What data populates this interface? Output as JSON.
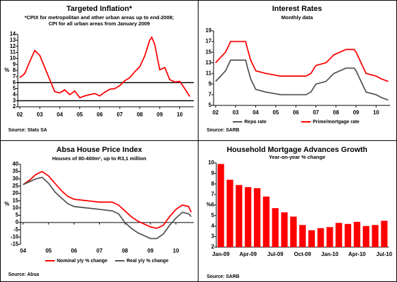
{
  "chart_data": [
    {
      "type": "line",
      "title": "Targeted Inflation*",
      "subtitle": [
        "*CPIX for metropolitan and other urban areas up to end-2008;",
        "CPI for all urban areas from January 2009"
      ],
      "ylabel": "%",
      "source": "Source: Stats SA",
      "x": [
        2002.0,
        2002.25,
        2002.5,
        2002.75,
        2003.0,
        2003.25,
        2003.5,
        2003.75,
        2004.0,
        2004.25,
        2004.5,
        2004.75,
        2005.0,
        2005.25,
        2005.5,
        2005.75,
        2006.0,
        2006.25,
        2006.5,
        2006.75,
        2007.0,
        2007.25,
        2007.5,
        2007.75,
        2008.0,
        2008.25,
        2008.5,
        2008.6,
        2008.75,
        2009.0,
        2009.25,
        2009.5,
        2009.75,
        2010.0,
        2010.25,
        2010.5
      ],
      "series": [
        {
          "color": "#ff0000",
          "values": [
            6.8,
            7.5,
            9.5,
            11.3,
            10.5,
            8.5,
            6.5,
            4.5,
            4.3,
            4.8,
            4.0,
            4.6,
            3.5,
            3.8,
            4.0,
            4.2,
            3.8,
            4.4,
            4.9,
            5.0,
            5.5,
            6.3,
            6.8,
            7.8,
            8.6,
            10.4,
            13.0,
            13.5,
            12.3,
            8.1,
            8.5,
            6.5,
            6.1,
            6.2,
            5.0,
            3.7
          ]
        }
      ],
      "hlines": [
        3,
        6
      ],
      "xlim": [
        2001.9,
        2010.7
      ],
      "xticks": [
        {
          "value": 2002,
          "label": "02"
        },
        {
          "value": 2003,
          "label": "03"
        },
        {
          "value": 2004,
          "label": "04"
        },
        {
          "value": 2005,
          "label": "05"
        },
        {
          "value": 2006,
          "label": "06"
        },
        {
          "value": 2007,
          "label": "07"
        },
        {
          "value": 2008,
          "label": "08"
        },
        {
          "value": 2009,
          "label": "09"
        },
        {
          "value": 2010,
          "label": "10"
        }
      ],
      "ylim": [
        2,
        14
      ],
      "yticks": [
        2,
        3,
        4,
        5,
        6,
        7,
        8,
        9,
        10,
        11,
        12,
        13,
        14
      ]
    },
    {
      "type": "line",
      "title": "Interest Rates",
      "subtitle": [
        "Monthly data"
      ],
      "source": "Source: SARB",
      "x": [
        2002.0,
        2002.25,
        2002.5,
        2002.75,
        2003.0,
        2003.25,
        2003.5,
        2003.6,
        2003.75,
        2004.0,
        2004.5,
        2005.25,
        2006.5,
        2006.75,
        2007.0,
        2007.5,
        2007.9,
        2008.5,
        2008.9,
        2009.0,
        2009.25,
        2009.5,
        2010.0,
        2010.25,
        2010.6
      ],
      "series": [
        {
          "name": "Repo rate",
          "color": "#555555",
          "values": [
            9.5,
            10.5,
            11.5,
            13.5,
            13.5,
            13.5,
            13.5,
            12,
            10,
            8,
            7.5,
            7,
            7,
            7.5,
            9,
            9.5,
            11,
            12,
            12,
            11.5,
            9.5,
            7.5,
            7,
            6.5,
            6
          ]
        },
        {
          "name": "Prime/mortgage rate",
          "color": "#ff0000",
          "values": [
            13,
            14,
            15,
            17,
            17,
            17,
            17,
            15.5,
            13.5,
            11.5,
            11,
            10.5,
            10.5,
            11,
            12.5,
            13,
            14.5,
            15.5,
            15.5,
            15,
            13,
            11,
            10.5,
            10,
            9.5
          ]
        }
      ],
      "xlim": [
        2001.9,
        2010.7
      ],
      "xticks": [
        {
          "value": 2002,
          "label": "02"
        },
        {
          "value": 2003,
          "label": "03"
        },
        {
          "value": 2004,
          "label": "04"
        },
        {
          "value": 2005,
          "label": "05"
        },
        {
          "value": 2006,
          "label": "06"
        },
        {
          "value": 2007,
          "label": "07"
        },
        {
          "value": 2008,
          "label": "08"
        },
        {
          "value": 2009,
          "label": "09"
        },
        {
          "value": 2010,
          "label": "10"
        }
      ],
      "ylim": [
        5,
        19
      ],
      "yticks": [
        5,
        7,
        9,
        11,
        13,
        15,
        17,
        19
      ]
    },
    {
      "type": "line",
      "title": "Absa House Price Index",
      "subtitle": [
        "Houses of 80-400m², up to R3,1 million"
      ],
      "ylabel": "%",
      "source": "Source: Absa",
      "x": [
        2004.0,
        2004.25,
        2004.5,
        2004.75,
        2005.0,
        2005.25,
        2005.5,
        2005.75,
        2006.0,
        2006.5,
        2007.0,
        2007.5,
        2007.75,
        2008.0,
        2008.25,
        2008.5,
        2008.75,
        2009.0,
        2009.25,
        2009.5,
        2009.75,
        2010.0,
        2010.25,
        2010.5,
        2010.6
      ],
      "series": [
        {
          "name": "Nominal y/y % change",
          "color": "#ff0000",
          "values": [
            26,
            29,
            33,
            35,
            32,
            27,
            22,
            18,
            16,
            15,
            14,
            14,
            12,
            8,
            4,
            1,
            -1,
            -3,
            -4,
            -2,
            4,
            9,
            12,
            11,
            7
          ]
        },
        {
          "name": "Real y/y % change",
          "color": "#555555",
          "values": [
            26,
            28,
            30,
            31,
            27,
            21,
            17,
            13,
            11,
            10,
            9,
            8,
            6,
            0,
            -4,
            -7,
            -9,
            -11,
            -11,
            -8,
            -2,
            3,
            7,
            6,
            4
          ]
        }
      ],
      "xlim": [
        2003.9,
        2010.7
      ],
      "xticks": [
        {
          "value": 2004,
          "label": "04"
        },
        {
          "value": 2005,
          "label": "05"
        },
        {
          "value": 2006,
          "label": "06"
        },
        {
          "value": 2007,
          "label": "07"
        },
        {
          "value": 2008,
          "label": "08"
        },
        {
          "value": 2009,
          "label": "09"
        },
        {
          "value": 2010,
          "label": "10"
        }
      ],
      "ylim": [
        -15,
        40
      ],
      "yticks": [
        -15,
        -10,
        -5,
        0,
        5,
        10,
        15,
        20,
        25,
        30,
        35,
        40
      ]
    },
    {
      "type": "bar",
      "title": "Household Mortgage Advances Growth",
      "subtitle": [
        "Year-on-year % change"
      ],
      "ylabel": "%",
      "source": "Source: SARB",
      "categories": [
        "Jan-09",
        null,
        null,
        "Apr-09",
        null,
        null,
        "Jul-09",
        null,
        null,
        "Oct-09",
        null,
        null,
        "Jan-10",
        null,
        null,
        "Apr-10",
        null,
        null,
        "Jul-10"
      ],
      "values": [
        9.9,
        8.4,
        7.9,
        7.7,
        7.6,
        6.8,
        5.7,
        5.3,
        4.9,
        4.1,
        3.6,
        3.8,
        3.9,
        4.3,
        4.2,
        4.4,
        4.0,
        4.1,
        4.5
      ],
      "color": "#ff0000",
      "ylim": [
        2,
        10
      ],
      "yticks": [
        2,
        3,
        4,
        5,
        6,
        7,
        8,
        9,
        10
      ]
    }
  ]
}
